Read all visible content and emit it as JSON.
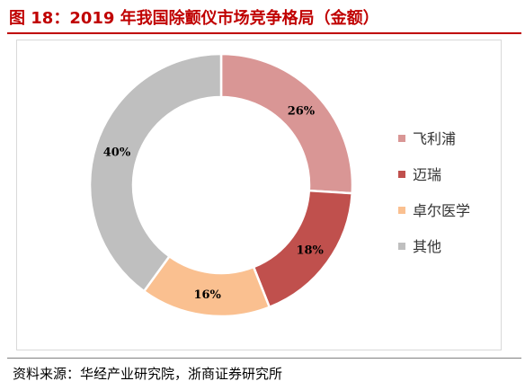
{
  "title": "图 18：2019 年我国除颤仪市场竞争格局（金额）",
  "source": "资料来源：华经产业研究院，浙商证券研究所",
  "colors": {
    "title": "#c00000",
    "series": [
      "#d99695",
      "#c0504d",
      "#fac090",
      "#bfbfbf"
    ]
  },
  "chart_data": {
    "type": "pie",
    "donut": true,
    "categories": [
      "飞利浦",
      "迈瑞",
      "卓尔医学",
      "其他"
    ],
    "values": [
      26,
      18,
      16,
      40
    ],
    "labels": [
      "26%",
      "18%",
      "16%",
      "40%"
    ],
    "legend_position": "right"
  }
}
